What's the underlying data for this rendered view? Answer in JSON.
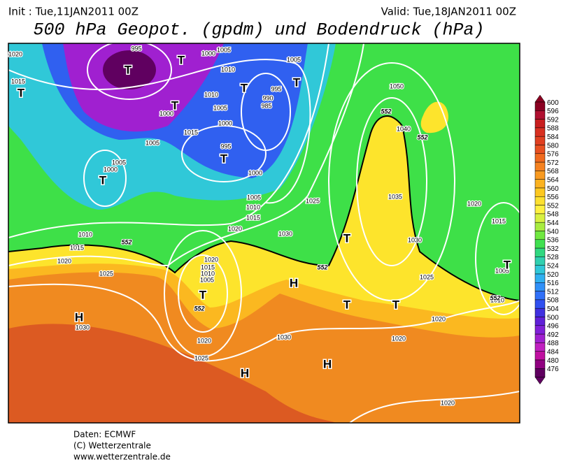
{
  "header": {
    "init": "Init : Tue,11JAN2011 00Z",
    "valid": "Valid: Tue,18JAN2011 00Z",
    "title": "500 hPa Geopot. (gpdm) und Bodendruck (hPa)"
  },
  "colorbar": {
    "levels": [
      600,
      596,
      592,
      588,
      584,
      580,
      576,
      572,
      568,
      564,
      560,
      556,
      552,
      548,
      544,
      540,
      536,
      532,
      528,
      524,
      520,
      516,
      512,
      508,
      504,
      500,
      496,
      492,
      488,
      484,
      480,
      476
    ],
    "colors": [
      "#8b0021",
      "#b01030",
      "#c81e1e",
      "#d83020",
      "#e04020",
      "#e85020",
      "#f06a1e",
      "#f58220",
      "#f89a20",
      "#fbb220",
      "#fdc820",
      "#fde030",
      "#fff040",
      "#d8f040",
      "#a8ec40",
      "#70e840",
      "#40e050",
      "#30d880",
      "#30d0b0",
      "#30c8d8",
      "#30b0f0",
      "#3090f8",
      "#3070f8",
      "#3050f0",
      "#4030e0",
      "#6020d8",
      "#8020d8",
      "#a020d0",
      "#c020c0",
      "#c010a0",
      "#900080",
      "#600060"
    ]
  },
  "isobar_labels": [
    "995",
    "1005",
    "1000",
    "1010",
    "1005",
    "995",
    "990",
    "985",
    "1010",
    "1005",
    "1000",
    "1015",
    "1000",
    "1005",
    "995",
    "1005",
    "1000",
    "1000",
    "1005",
    "1010",
    "1015",
    "1020",
    "1025",
    "1030",
    "1035",
    "1040",
    "1050",
    "1030",
    "1020",
    "1015",
    "1005",
    "1010",
    "1025",
    "1020",
    "1020",
    "1030",
    "1020",
    "1025",
    "1020",
    "1015",
    "1010",
    "1005",
    "1030",
    "1025",
    "1020",
    "1015",
    "1010",
    "1015",
    "1020",
    "1020"
  ],
  "pressure_centers": [
    "T",
    "T",
    "T",
    "T",
    "T",
    "T",
    "T",
    "T",
    "T",
    "T",
    "H",
    "T",
    "T",
    "H",
    "H",
    "H",
    "T"
  ],
  "height_labels": [
    "552",
    "552",
    "552",
    "552",
    "552",
    "552"
  ],
  "footer": {
    "source": "Daten: ECMWF",
    "copyright": "(C) Wetterzentrale",
    "url": "www.wetterzentrale.de"
  }
}
